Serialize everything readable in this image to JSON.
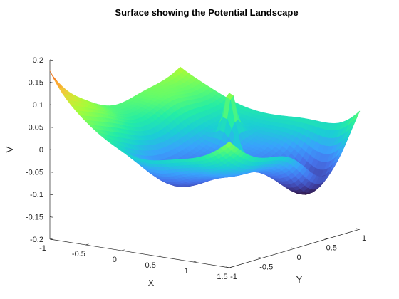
{
  "chart_data": {
    "type": "surface",
    "title": "Surface showing the Potential Landscape",
    "xlabel": "X",
    "ylabel": "Y",
    "zlabel": "V",
    "xlim": [
      -1,
      1.5
    ],
    "ylim": [
      -1,
      1
    ],
    "zlim": [
      -0.2,
      0.2
    ],
    "x_ticks": [
      "-1",
      "-0.5",
      "0",
      "0.5",
      "1",
      "1.5"
    ],
    "y_ticks": [
      "-1",
      "-0.5",
      "0",
      "0.5",
      "1"
    ],
    "z_ticks": [
      "-0.2",
      "-0.15",
      "-0.1",
      "-0.05",
      "0",
      "0.05",
      "0.1",
      "0.15",
      "0.2"
    ],
    "colormap": "turbo",
    "grid": false,
    "key_points": [
      {
        "label": "global minimum",
        "x": 1.3,
        "y": 0.5,
        "v": -0.13
      },
      {
        "label": "cusp peak",
        "x": 0.1,
        "y": 0.55,
        "v": 0.2
      },
      {
        "label": "cusp peak",
        "x": 0.6,
        "y": 0.1,
        "v": 0.1
      },
      {
        "label": "corner",
        "x": -1,
        "y": -1,
        "v": 0.19
      },
      {
        "label": "corner",
        "x": 1.5,
        "y": 1,
        "v": 0.12
      }
    ]
  }
}
